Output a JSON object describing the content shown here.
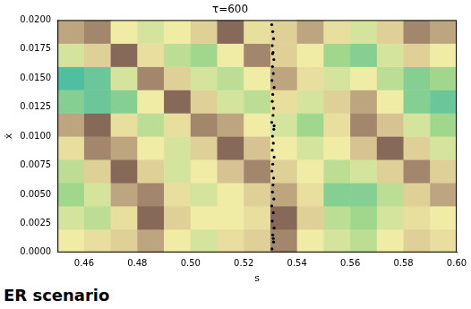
{
  "chart_data": {
    "type": "heatmap",
    "title": "τ=600",
    "x_label": "s",
    "y_label": "ẋ",
    "annotation": "ER scenario",
    "xlim": [
      0.45,
      0.6
    ],
    "ylim": [
      0,
      0.02
    ],
    "xticks": [
      0.46,
      0.48,
      {
        "value": 0.5,
        "label": "0.50"
      },
      0.52,
      0.54,
      0.56,
      0.58,
      {
        "value": 0.6,
        "label": "0.60"
      }
    ],
    "yticks": [
      {
        "value": 0,
        "label": "0.0000"
      },
      {
        "value": 0.0025,
        "label": "0.0025"
      },
      {
        "value": 0.005,
        "label": "0.0050"
      },
      {
        "value": 0.0075,
        "label": "0.0075"
      },
      {
        "value": 0.01,
        "label": "0.0100"
      },
      {
        "value": 0.0125,
        "label": "0.0125"
      },
      {
        "value": 0.015,
        "label": "0.0150"
      },
      {
        "value": 0.0175,
        "label": "0.0175"
      },
      {
        "value": 0.02,
        "label": "0.0200"
      }
    ],
    "grid": false,
    "x_edges": [
      0.45,
      0.46,
      0.47,
      0.48,
      0.49,
      0.5,
      0.51,
      0.52,
      0.53,
      0.54,
      0.55,
      0.56,
      0.57,
      0.58,
      0.59,
      0.6
    ],
    "y_edges": [
      0,
      0.002,
      0.004,
      0.006,
      0.008,
      0.01,
      0.012,
      0.014,
      0.016,
      0.018,
      0.02
    ],
    "clim": [
      0,
      1
    ],
    "cells": [
      [
        0.5,
        0.55,
        0.6,
        0.7,
        0.5,
        0.45,
        0.55,
        0.6,
        0.75,
        0.5,
        0.45,
        0.4,
        0.5,
        0.6,
        0.55
      ],
      [
        0.45,
        0.4,
        0.55,
        0.8,
        0.6,
        0.5,
        0.5,
        0.55,
        0.8,
        0.6,
        0.4,
        0.35,
        0.45,
        0.55,
        0.5
      ],
      [
        0.35,
        0.45,
        0.7,
        0.75,
        0.55,
        0.45,
        0.5,
        0.6,
        0.7,
        0.55,
        0.3,
        0.3,
        0.4,
        0.6,
        0.7
      ],
      [
        0.4,
        0.6,
        0.8,
        0.6,
        0.45,
        0.5,
        0.65,
        0.75,
        0.6,
        0.5,
        0.4,
        0.45,
        0.6,
        0.75,
        0.6
      ],
      [
        0.55,
        0.75,
        0.7,
        0.5,
        0.45,
        0.6,
        0.8,
        0.65,
        0.5,
        0.45,
        0.5,
        0.65,
        0.8,
        0.6,
        0.45
      ],
      [
        0.7,
        0.8,
        0.55,
        0.4,
        0.55,
        0.75,
        0.7,
        0.5,
        0.45,
        0.35,
        0.55,
        0.75,
        0.65,
        0.45,
        0.35
      ],
      [
        0.3,
        0.25,
        0.3,
        0.5,
        0.8,
        0.6,
        0.45,
        0.4,
        0.55,
        0.45,
        0.6,
        0.7,
        0.5,
        0.3,
        0.25
      ],
      [
        0.2,
        0.25,
        0.45,
        0.75,
        0.6,
        0.45,
        0.4,
        0.5,
        0.7,
        0.55,
        0.45,
        0.5,
        0.4,
        0.3,
        0.35
      ],
      [
        0.45,
        0.6,
        0.8,
        0.55,
        0.4,
        0.35,
        0.5,
        0.75,
        0.6,
        0.5,
        0.35,
        0.3,
        0.45,
        0.6,
        0.5
      ],
      [
        0.7,
        0.75,
        0.5,
        0.45,
        0.5,
        0.6,
        0.8,
        0.55,
        0.6,
        0.7,
        0.55,
        0.45,
        0.6,
        0.75,
        0.7
      ]
    ],
    "series": [
      {
        "type": "scatter",
        "color": "#000000",
        "marker": "circle",
        "x": [
          0.5306,
          0.5312,
          0.5309,
          0.5314,
          0.5307,
          0.5311,
          0.5305,
          0.5313,
          0.5308,
          0.531,
          0.5312,
          0.5306,
          0.5309,
          0.5314,
          0.5307,
          0.5311,
          0.5308,
          0.5313,
          0.5305,
          0.531,
          0.5312,
          0.5307,
          0.5309,
          0.5314,
          0.5306,
          0.5311,
          0.5308,
          0.5313,
          0.531,
          0.5307,
          0.5312,
          0.5309,
          0.5305,
          0.5311,
          0.5314,
          0.5308
        ],
        "y": [
          0.0003,
          0.0009,
          0.0015,
          0.0021,
          0.0027,
          0.0034,
          0.004,
          0.0046,
          0.0052,
          0.0058,
          0.0064,
          0.007,
          0.0076,
          0.0082,
          0.0088,
          0.0094,
          0.01,
          0.0106,
          0.0112,
          0.0118,
          0.0124,
          0.013,
          0.0136,
          0.0142,
          0.0148,
          0.0154,
          0.016,
          0.0166,
          0.0172,
          0.0178,
          0.0184,
          0.019,
          0.0196,
          0.0012,
          0.0109,
          0.0171
        ]
      }
    ]
  }
}
